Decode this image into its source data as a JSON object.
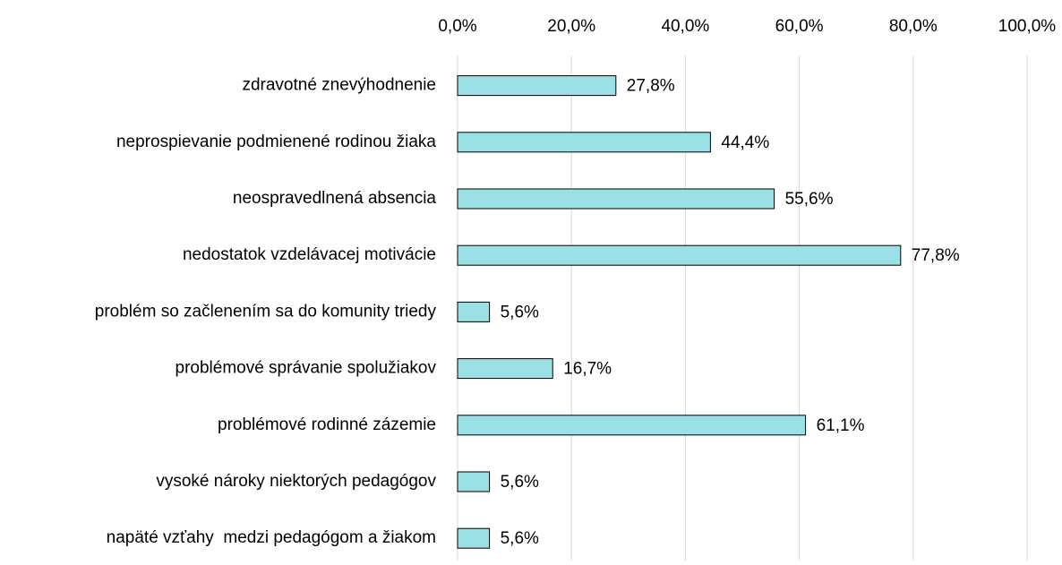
{
  "chart_data": {
    "type": "hbar",
    "categories": [
      "zdravotné znevýhodnenie",
      "neprospievanie podmienené rodinou žiaka",
      "neospravedlnená absencia",
      "nedostatok vzdelávacej motivácie",
      "problém so začlenením sa do komunity triedy",
      "problémové správanie spolužiakov",
      "problémové rodinné zázemie",
      "vysoké nároky niektorých pedagógov",
      "napäté vzťahy  medzi pedagógom a žiakom"
    ],
    "values": [
      27.8,
      44.4,
      55.6,
      77.8,
      5.6,
      16.7,
      61.1,
      5.6,
      5.6
    ],
    "value_labels": [
      "27,8%",
      "44,4%",
      "55,6%",
      "77,8%",
      "5,6%",
      "16,7%",
      "61,1%",
      "5,6%",
      "5,6%"
    ],
    "color": "#9be0e4",
    "xlim": [
      0,
      100
    ],
    "xticks": [
      {
        "value": 0,
        "label": "0,0%"
      },
      {
        "value": 20,
        "label": "20,0%"
      },
      {
        "value": 40,
        "label": "40,0%"
      },
      {
        "value": 60,
        "label": "60,0%"
      },
      {
        "value": 80,
        "label": "80,0%"
      },
      {
        "value": 100,
        "label": "100,0%"
      }
    ],
    "grid": true
  }
}
